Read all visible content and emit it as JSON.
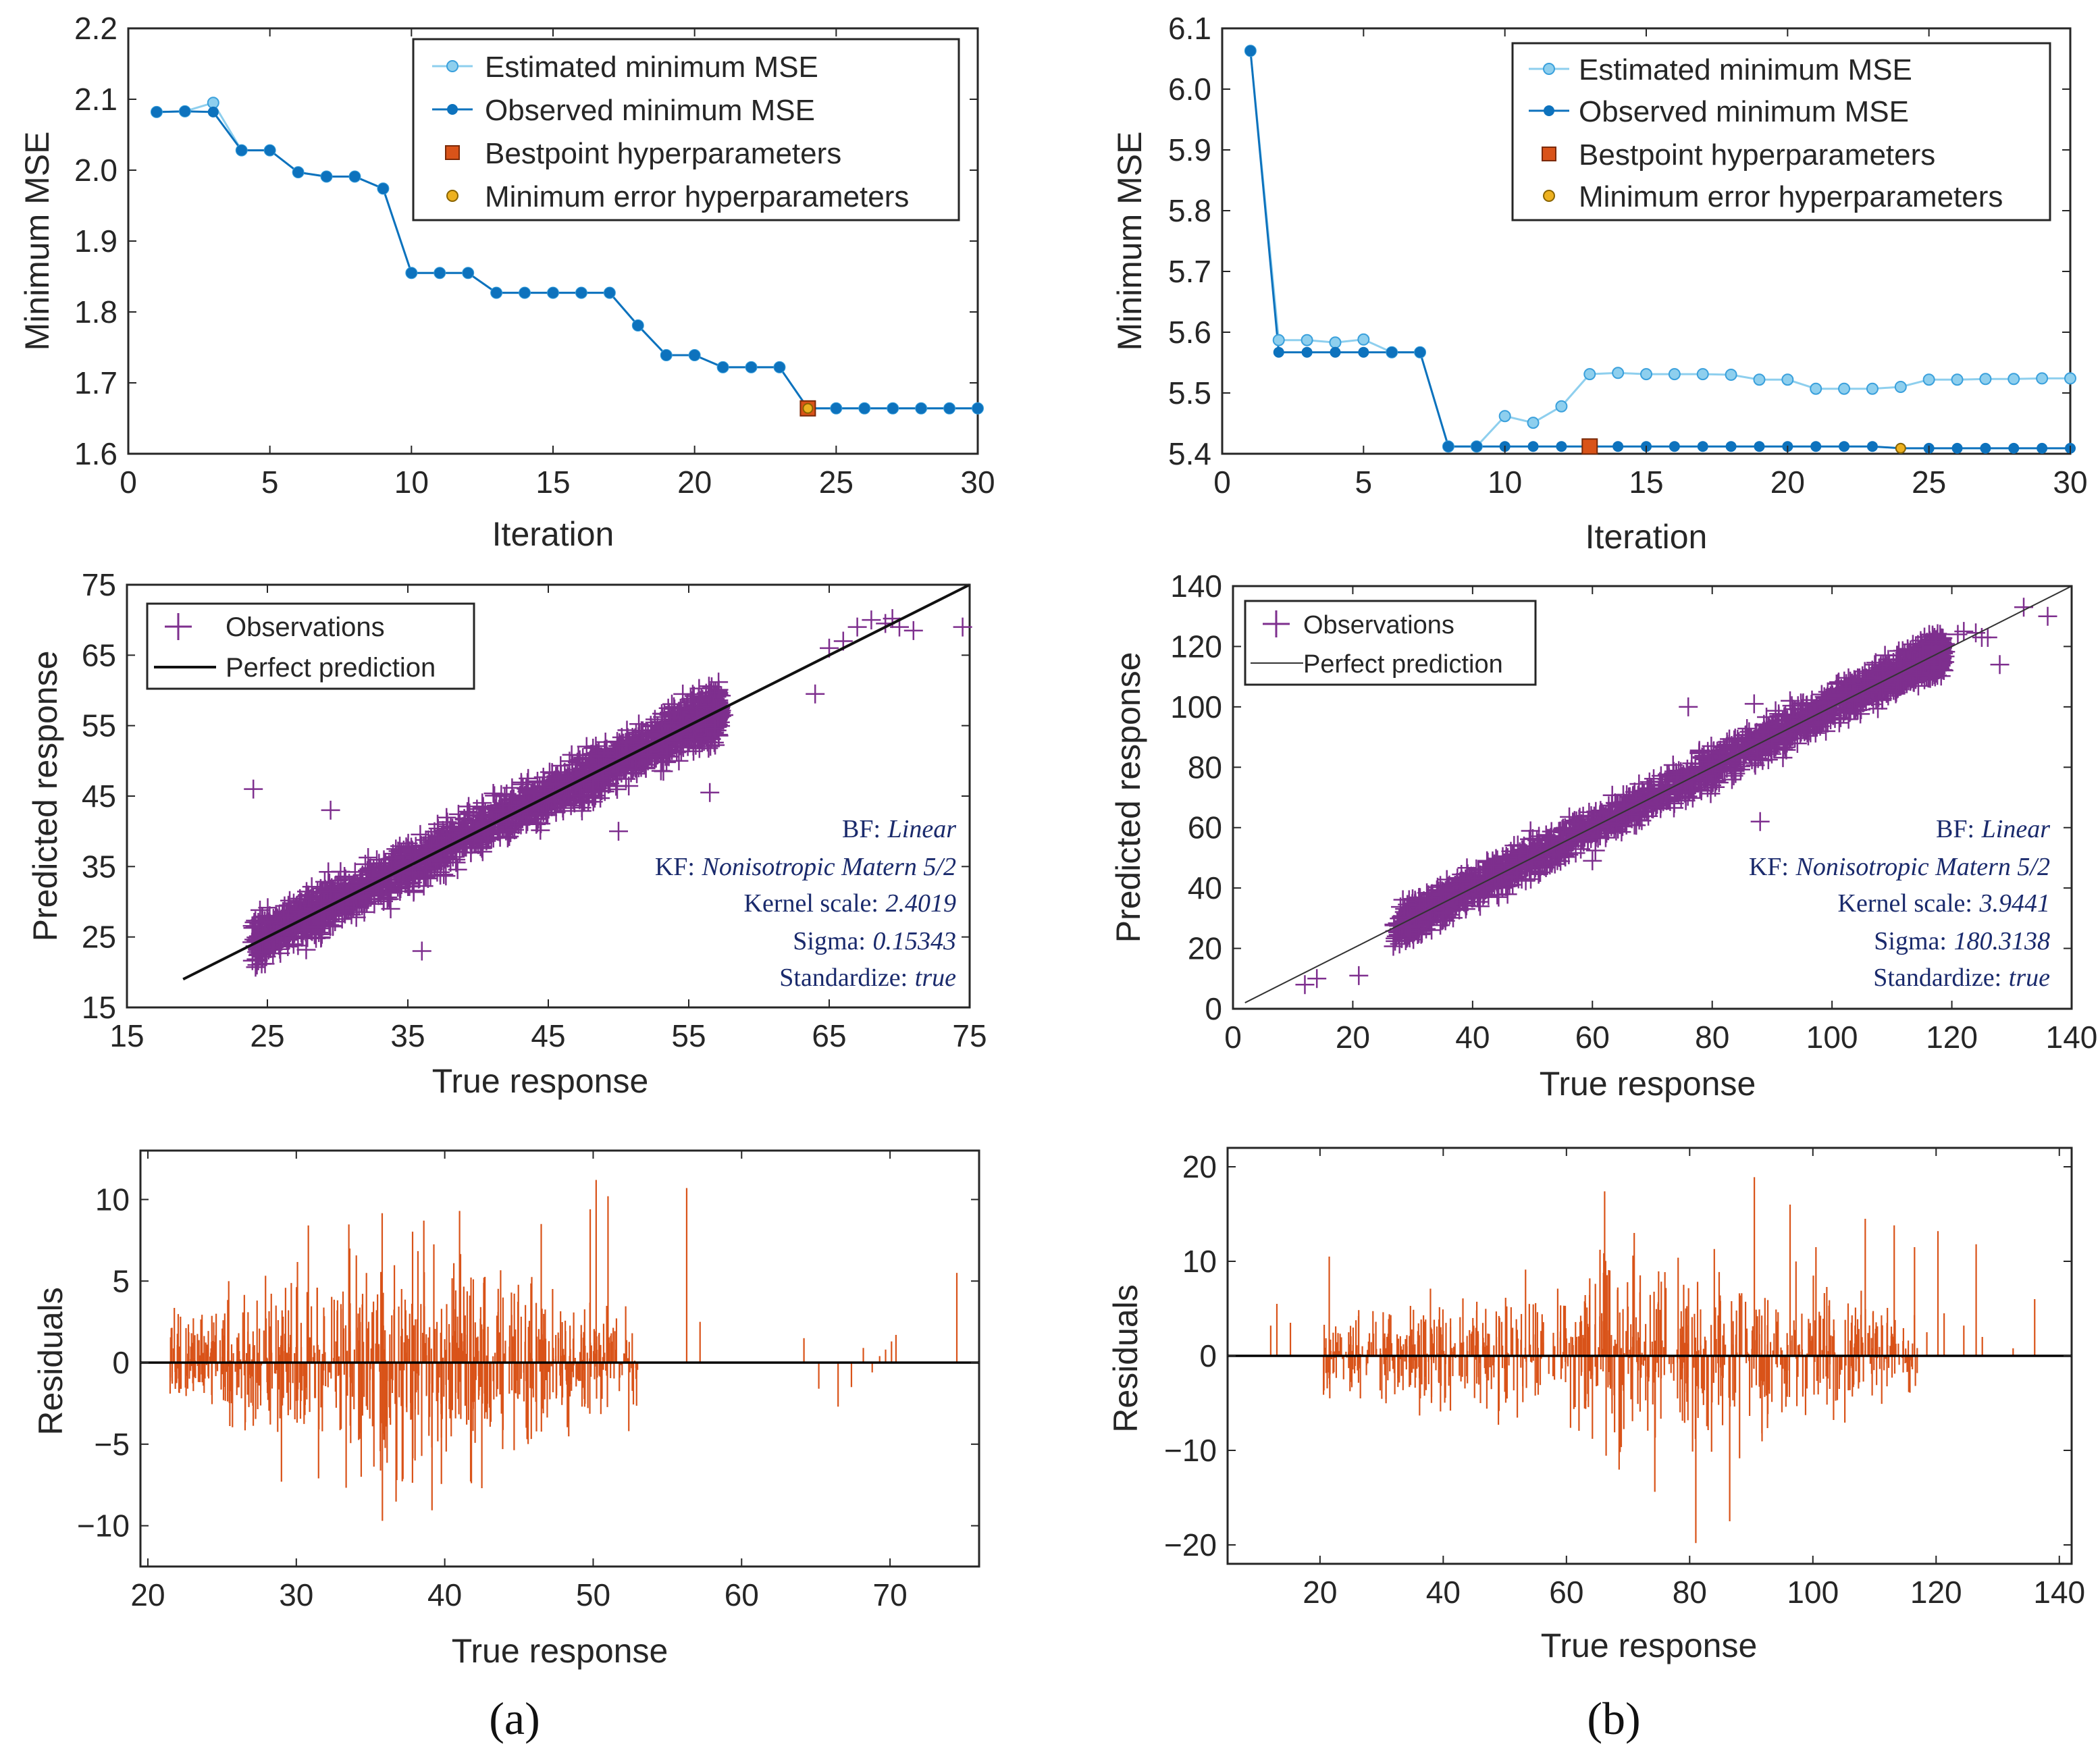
{
  "colors": {
    "estimated": "#8ecfee",
    "estimated_stroke": "#3aa0dc",
    "observed": "#0d72bd",
    "bestpoint": "#d95319",
    "minerror": "#edb120",
    "scatter": "#7e2f8e",
    "residual": "#d95319",
    "axis": "#262626",
    "annotation": "#1a2a6c"
  },
  "captions": {
    "a": "(a)",
    "b": "(b)"
  },
  "chart_data": [
    {
      "id": "mse-a",
      "type": "line",
      "title": "",
      "xlabel": "Iteration",
      "ylabel": "Minimum MSE",
      "xlim": [
        0,
        30
      ],
      "ylim": [
        1.6,
        2.2
      ],
      "xticks": [
        0,
        5,
        10,
        15,
        20,
        25,
        30
      ],
      "yticks": [
        1.6,
        1.7,
        1.8,
        1.9,
        2.0,
        2.1,
        2.2
      ],
      "ytick_labels": [
        "1.6",
        "1.7",
        "1.8",
        "1.9",
        "2.0",
        "2.1",
        "2.2"
      ],
      "legend_labels": [
        "Estimated minimum MSE",
        "Observed minimum MSE",
        "Bestpoint hyperparameters",
        "Minimum error hyperparameters"
      ],
      "legend_position": "top-right",
      "x": [
        1,
        2,
        3,
        4,
        5,
        6,
        7,
        8,
        9,
        10,
        11,
        12,
        13,
        14,
        15,
        16,
        17,
        18,
        19,
        20,
        21,
        22,
        23,
        24,
        25,
        26,
        27,
        28,
        29,
        30
      ],
      "series": [
        {
          "name": "Estimated minimum MSE",
          "values": [
            2.082,
            2.083,
            2.095,
            2.028,
            2.028,
            1.997,
            1.991,
            1.991,
            1.974,
            1.855,
            1.855,
            1.855,
            1.827,
            1.827,
            1.827,
            1.827,
            1.827,
            1.781,
            1.739,
            1.739,
            1.722,
            1.722,
            1.722,
            1.664,
            1.664,
            1.664,
            1.664,
            1.664,
            1.664,
            1.664
          ]
        },
        {
          "name": "Observed minimum MSE",
          "values": [
            2.082,
            2.083,
            2.082,
            2.028,
            2.028,
            1.997,
            1.991,
            1.991,
            1.974,
            1.855,
            1.855,
            1.855,
            1.827,
            1.827,
            1.827,
            1.827,
            1.827,
            1.781,
            1.739,
            1.739,
            1.722,
            1.722,
            1.722,
            1.664,
            1.664,
            1.664,
            1.664,
            1.664,
            1.664,
            1.664
          ]
        }
      ],
      "bestpoint": {
        "x": 24,
        "y": 1.664
      },
      "min_error": {
        "x": 24,
        "y": 1.664
      }
    },
    {
      "id": "mse-b",
      "type": "line",
      "title": "",
      "xlabel": "Iteration",
      "ylabel": "Minimum MSE",
      "xlim": [
        0,
        30
      ],
      "ylim": [
        5.4,
        6.1
      ],
      "xticks": [
        0,
        5,
        10,
        15,
        20,
        25,
        30
      ],
      "yticks": [
        5.4,
        5.5,
        5.6,
        5.7,
        5.8,
        5.9,
        6.0,
        6.1
      ],
      "ytick_labels": [
        "5.4",
        "5.5",
        "5.6",
        "5.7",
        "5.8",
        "5.9",
        "6.0",
        "6.1"
      ],
      "legend_labels": [
        "Estimated minimum MSE",
        "Observed minimum MSE",
        "Bestpoint hyperparameters",
        "Minimum error hyperparameters"
      ],
      "legend_position": "top-right",
      "x": [
        1,
        2,
        3,
        4,
        5,
        6,
        7,
        8,
        9,
        10,
        11,
        12,
        13,
        14,
        15,
        16,
        17,
        18,
        19,
        20,
        21,
        22,
        23,
        24,
        25,
        26,
        27,
        28,
        29,
        30
      ],
      "series": [
        {
          "name": "Estimated minimum MSE",
          "values": [
            6.063,
            5.587,
            5.587,
            5.583,
            5.588,
            5.567,
            5.567,
            5.412,
            5.412,
            5.462,
            5.451,
            5.478,
            5.531,
            5.533,
            5.531,
            5.531,
            5.531,
            5.53,
            5.522,
            5.522,
            5.507,
            5.507,
            5.507,
            5.51,
            5.522,
            5.522,
            5.523,
            5.523,
            5.524,
            5.524
          ]
        },
        {
          "name": "Observed minimum MSE",
          "values": [
            6.063,
            5.567,
            5.567,
            5.567,
            5.567,
            5.567,
            5.567,
            5.412,
            5.412,
            5.412,
            5.412,
            5.412,
            5.412,
            5.412,
            5.412,
            5.412,
            5.412,
            5.412,
            5.412,
            5.412,
            5.412,
            5.412,
            5.412,
            5.409,
            5.409,
            5.409,
            5.409,
            5.409,
            5.409,
            5.409
          ]
        }
      ],
      "bestpoint": {
        "x": 13,
        "y": 5.412
      },
      "min_error": {
        "x": 24,
        "y": 5.409
      }
    },
    {
      "id": "pred-a",
      "type": "scatter",
      "title": "",
      "xlabel": "True response",
      "ylabel": "Predicted response",
      "xlim": [
        15,
        75
      ],
      "ylim": [
        15,
        75
      ],
      "xticks": [
        15,
        25,
        35,
        45,
        55,
        65,
        75
      ],
      "yticks": [
        15,
        25,
        35,
        45,
        55,
        65,
        75
      ],
      "legend_labels": [
        "Observations",
        "Perfect prediction"
      ],
      "legend_position": "top-left",
      "line": {
        "name": "Perfect prediction",
        "from": [
          19,
          19
        ],
        "to": [
          75,
          75
        ]
      },
      "cloud": {
        "n": 2600,
        "x_min": 21.5,
        "x_max": 57,
        "noise": 2.3,
        "seed": 7
      },
      "outliers": [
        [
          64,
          59.5
        ],
        [
          65,
          66
        ],
        [
          66,
          67
        ],
        [
          67,
          69
        ],
        [
          68,
          70
        ],
        [
          69,
          69.5
        ],
        [
          70,
          69
        ],
        [
          71,
          68.5
        ],
        [
          74.5,
          69
        ],
        [
          69.5,
          70.2
        ],
        [
          56.5,
          45.5
        ],
        [
          57.5,
          56.5
        ],
        [
          24,
          46
        ],
        [
          29.5,
          43
        ],
        [
          36,
          23
        ],
        [
          50,
          40
        ]
      ],
      "annotations": [
        {
          "label": "BF:",
          "value": "Linear"
        },
        {
          "label": "KF:",
          "value": "Nonisotropic Matern 5/2"
        },
        {
          "label": "Kernel scale:",
          "value": "2.4019"
        },
        {
          "label": "Sigma:",
          "value": "0.15343"
        },
        {
          "label": "Standardize:",
          "value": "true"
        }
      ]
    },
    {
      "id": "pred-b",
      "type": "scatter",
      "title": "",
      "xlabel": "True response",
      "ylabel": "Predicted response",
      "xlim": [
        0,
        140
      ],
      "ylim": [
        0,
        140
      ],
      "xticks": [
        0,
        20,
        40,
        60,
        80,
        100,
        120,
        140
      ],
      "yticks": [
        0,
        20,
        40,
        60,
        80,
        100,
        120,
        140
      ],
      "legend_labels": [
        "Observations",
        "Perfect prediction"
      ],
      "legend_position": "top-left",
      "line": {
        "name": "Perfect prediction",
        "from": [
          2,
          2
        ],
        "to": [
          140,
          140
        ]
      },
      "cloud": {
        "n": 2600,
        "x_min": 20.5,
        "x_max": 118,
        "noise": 4.2,
        "seed": 11
      },
      "outliers": [
        [
          12,
          8
        ],
        [
          14,
          10
        ],
        [
          21,
          11
        ],
        [
          121,
          124
        ],
        [
          122,
          125
        ],
        [
          124,
          124.5
        ],
        [
          125,
          123
        ],
        [
          126,
          123
        ],
        [
          128,
          114
        ],
        [
          132,
          133
        ],
        [
          136,
          130
        ],
        [
          118,
          113
        ],
        [
          87,
          101
        ],
        [
          60,
          49
        ],
        [
          88,
          62
        ],
        [
          76,
          100
        ],
        [
          93,
          102
        ]
      ],
      "annotations": [
        {
          "label": "BF:",
          "value": "Linear"
        },
        {
          "label": "KF:",
          "value": "Nonisotropic Matern 5/2"
        },
        {
          "label": "Kernel scale:",
          "value": "3.9441"
        },
        {
          "label": "Sigma:",
          "value": "180.3138"
        },
        {
          "label": "Standardize:",
          "value": "true"
        }
      ]
    },
    {
      "id": "resid-a",
      "type": "bar",
      "title": "",
      "xlabel": "True response",
      "ylabel": "Residuals",
      "xlim": [
        19.5,
        76
      ],
      "ylim": [
        -12.5,
        13
      ],
      "xticks": [
        20,
        30,
        40,
        50,
        60,
        70
      ],
      "yticks": [
        -10,
        -5,
        0,
        5,
        10
      ],
      "ytick_labels": [
        "−10",
        "−5",
        "0",
        "5",
        "10"
      ],
      "generated": {
        "n": 880,
        "x_min": 21.5,
        "x_max": 53,
        "base": 1.6,
        "peak_at": 37,
        "peak_gain": 2.2,
        "seed": 23
      },
      "stems": [
        [
          50.2,
          11.2
        ],
        [
          56.3,
          10.7
        ],
        [
          51,
          10.2
        ],
        [
          49.8,
          9.4
        ],
        [
          41,
          9.3
        ],
        [
          46.5,
          8.5
        ],
        [
          33.6,
          7
        ],
        [
          35.8,
          -9.7
        ],
        [
          29,
          -7.3
        ],
        [
          31.5,
          -7.1
        ],
        [
          38,
          -6
        ],
        [
          42.5,
          -7.7
        ],
        [
          52.4,
          -4.2
        ],
        [
          57.2,
          2.5
        ],
        [
          64.2,
          1.5
        ],
        [
          65.2,
          -1.6
        ],
        [
          66.5,
          -2.7
        ],
        [
          67.4,
          -1.5
        ],
        [
          68.2,
          0.9
        ],
        [
          68.8,
          -0.6
        ],
        [
          69.3,
          0.4
        ],
        [
          69.7,
          0.8
        ],
        [
          70.1,
          1.3
        ],
        [
          70.4,
          1.7
        ],
        [
          74.5,
          5.5
        ],
        [
          22,
          0.6
        ],
        [
          21.5,
          -1.9
        ],
        [
          24.6,
          3
        ]
      ]
    },
    {
      "id": "resid-b",
      "type": "bar",
      "title": "",
      "xlabel": "True response",
      "ylabel": "Residuals",
      "xlim": [
        5,
        142
      ],
      "ylim": [
        -22,
        22
      ],
      "xticks": [
        20,
        40,
        60,
        80,
        100,
        120,
        140
      ],
      "yticks": [
        -20,
        -10,
        0,
        10,
        20
      ],
      "ytick_labels": [
        "−20",
        "−10",
        "0",
        "10",
        "20"
      ],
      "generated": {
        "n": 900,
        "x_min": 20.5,
        "x_max": 117,
        "base": 2.6,
        "peak_at": 75,
        "peak_gain": 1.6,
        "seed": 41
      },
      "stems": [
        [
          81,
          -19.8
        ],
        [
          86.5,
          -17.5
        ],
        [
          90.5,
          18.9
        ],
        [
          66.2,
          17.4
        ],
        [
          96.3,
          16
        ],
        [
          108.5,
          14.5
        ],
        [
          71,
          13
        ],
        [
          113.2,
          13.8
        ],
        [
          120.3,
          13.2
        ],
        [
          126.5,
          11.8
        ],
        [
          116.5,
          11.5
        ],
        [
          84,
          11.3
        ],
        [
          100.5,
          11.5
        ],
        [
          12,
          3.2
        ],
        [
          13,
          5.5
        ],
        [
          15.2,
          3.5
        ],
        [
          21.5,
          10.5
        ],
        [
          132.5,
          0.8
        ],
        [
          136,
          6
        ],
        [
          121.3,
          4.5
        ],
        [
          124.5,
          3.2
        ],
        [
          118.5,
          2.5
        ],
        [
          127.5,
          2
        ]
      ]
    }
  ]
}
